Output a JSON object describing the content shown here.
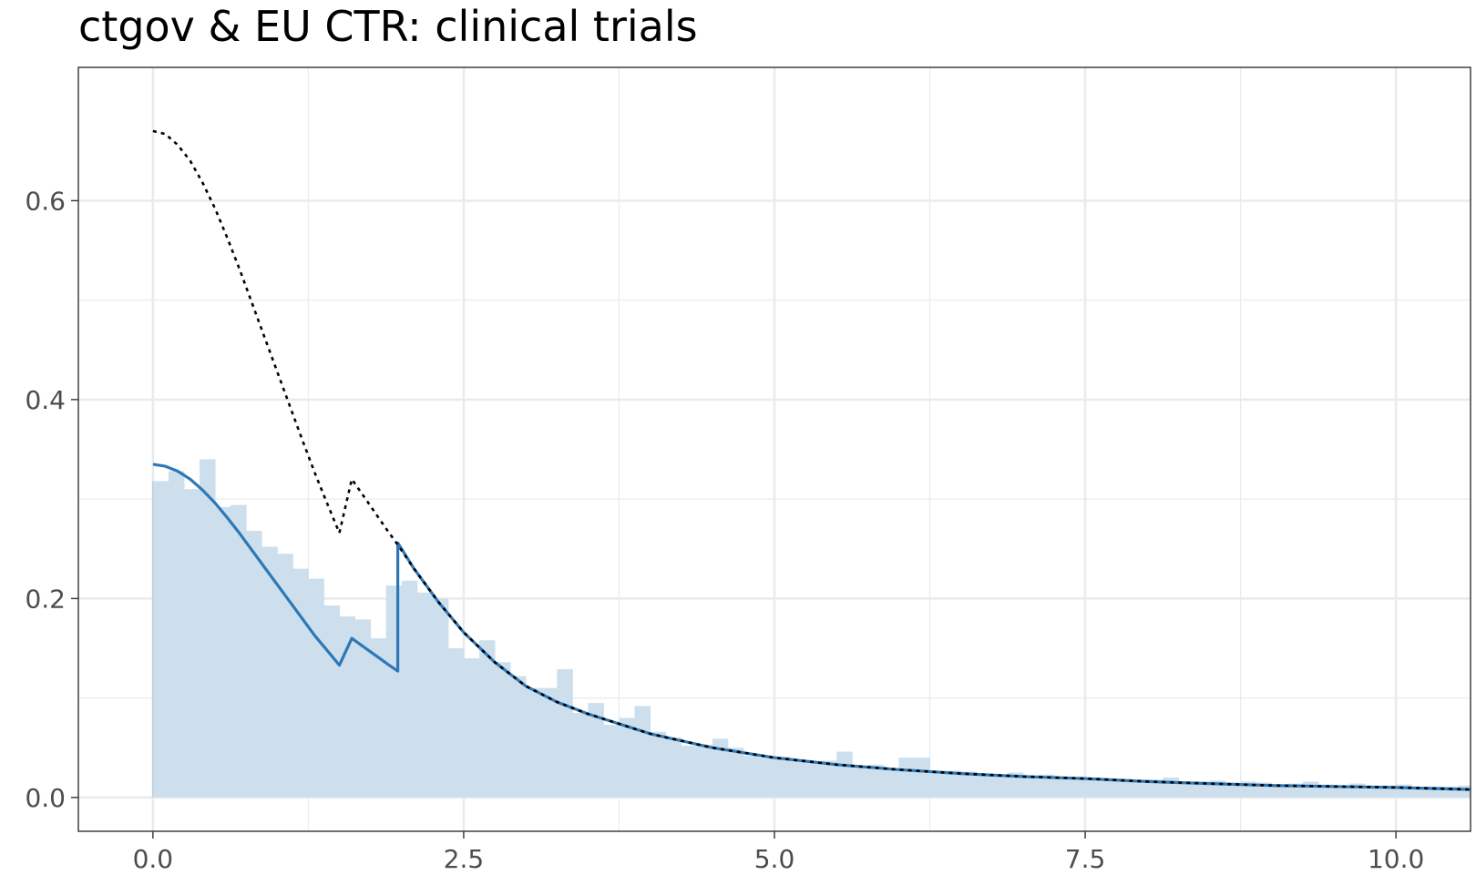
{
  "chart_data": {
    "type": "area",
    "title": "ctgov & EU CTR: clinical trials",
    "xlabel": "",
    "ylabel": "",
    "xlim": [
      -0.6,
      10.6
    ],
    "ylim": [
      -0.034,
      0.734
    ],
    "x_ticks": [
      "0.0",
      "2.5",
      "5.0",
      "7.5",
      "10.0"
    ],
    "x_tick_values": [
      0,
      2.5,
      5,
      7.5,
      10
    ],
    "y_ticks": [
      "0.0",
      "0.2",
      "0.4",
      "0.6"
    ],
    "y_tick_values": [
      0,
      0.2,
      0.4,
      0.6
    ],
    "grid": true,
    "colors": {
      "histogram_fill": "#cddfed",
      "fitted_line": "#2e78b7",
      "reference_line": "#000000",
      "grid": "#ebebeb",
      "panel_border": "#333333"
    },
    "histogram": {
      "bin_width": 0.125,
      "bin_start": 0,
      "values": [
        0.318,
        0.328,
        0.31,
        0.34,
        0.292,
        0.294,
        0.268,
        0.252,
        0.245,
        0.23,
        0.22,
        0.193,
        0.182,
        0.179,
        0.16,
        0.213,
        0.218,
        0.206,
        0.2,
        0.15,
        0.14,
        0.158,
        0.136,
        0.122,
        0.11,
        0.11,
        0.129,
        0.085,
        0.095,
        0.073,
        0.08,
        0.092,
        0.066,
        0.06,
        0.052,
        0.053,
        0.059,
        0.05,
        0.042,
        0.04,
        0.041,
        0.038,
        0.035,
        0.037,
        0.046,
        0.032,
        0.033,
        0.029,
        0.04,
        0.04,
        0.025,
        0.027,
        0.026,
        0.023,
        0.022,
        0.025,
        0.022,
        0.023,
        0.021,
        0.02,
        0.02,
        0.019,
        0.017,
        0.018,
        0.018,
        0.02,
        0.014,
        0.016,
        0.017,
        0.015,
        0.016,
        0.015,
        0.013,
        0.014,
        0.016,
        0.013,
        0.012,
        0.014,
        0.011,
        0.012,
        0.013,
        0.01,
        0.011,
        0.011,
        0.012,
        0.01
      ]
    },
    "series": [
      {
        "line_style": "solid",
        "x": [
          0,
          0.1,
          0.2,
          0.3,
          0.4,
          0.5,
          0.6,
          0.7,
          0.8,
          0.9,
          1.0,
          1.1,
          1.2,
          1.3,
          1.4,
          1.5,
          1.6,
          1.7,
          1.8,
          1.9,
          1.97,
          1.97,
          2.1,
          2.3,
          2.5,
          2.75,
          3.0,
          3.25,
          3.5,
          3.75,
          4.0,
          4.5,
          5.0,
          5.5,
          6.0,
          6.5,
          7.0,
          7.5,
          8.0,
          8.5,
          9.0,
          9.5,
          10.0,
          10.6
        ],
        "y": [
          0.335,
          0.333,
          0.328,
          0.32,
          0.309,
          0.296,
          0.281,
          0.265,
          0.248,
          0.231,
          0.214,
          0.197,
          0.18,
          0.163,
          0.148,
          0.133,
          0.16,
          0.151,
          0.142,
          0.133,
          0.127,
          0.256,
          0.23,
          0.196,
          0.166,
          0.136,
          0.112,
          0.096,
          0.084,
          0.074,
          0.064,
          0.05,
          0.04,
          0.033,
          0.028,
          0.024,
          0.021,
          0.019,
          0.016,
          0.014,
          0.012,
          0.011,
          0.01,
          0.008
        ]
      },
      {
        "line_style": "dotted",
        "x": [
          0,
          0.1,
          0.2,
          0.3,
          0.4,
          0.5,
          0.6,
          0.7,
          0.8,
          0.9,
          1.0,
          1.1,
          1.2,
          1.3,
          1.4,
          1.5,
          1.6,
          1.7,
          1.8,
          1.9,
          1.97,
          2.1,
          2.3,
          2.5,
          2.75,
          3.0,
          3.25,
          3.5,
          3.75,
          4.0,
          4.5,
          5.0,
          5.5,
          6.0,
          6.5,
          7.0,
          7.5,
          8.0,
          8.5,
          9.0,
          9.5,
          10.0,
          10.6
        ],
        "y": [
          0.67,
          0.667,
          0.656,
          0.64,
          0.618,
          0.592,
          0.562,
          0.53,
          0.496,
          0.462,
          0.428,
          0.394,
          0.36,
          0.327,
          0.296,
          0.266,
          0.32,
          0.302,
          0.284,
          0.266,
          0.254,
          0.23,
          0.196,
          0.166,
          0.136,
          0.112,
          0.096,
          0.084,
          0.074,
          0.064,
          0.05,
          0.04,
          0.033,
          0.028,
          0.024,
          0.021,
          0.019,
          0.016,
          0.014,
          0.012,
          0.011,
          0.01,
          0.008
        ]
      }
    ]
  }
}
